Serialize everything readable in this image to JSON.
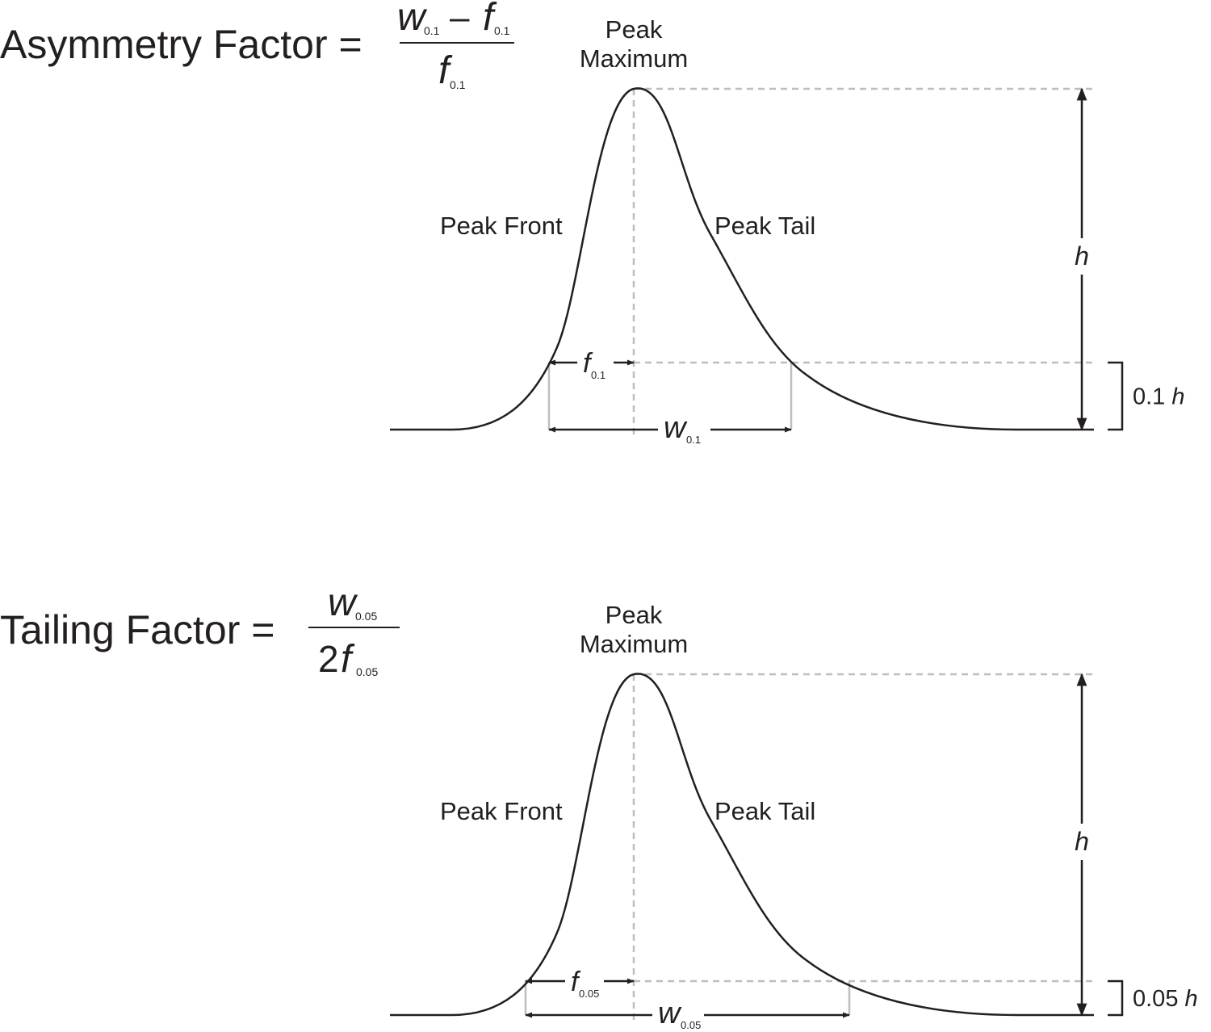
{
  "asymmetry": {
    "label": "Asymmetry Factor =",
    "numerator": {
      "w": "w",
      "w_sub": "0.1",
      "minus": "–",
      "f": "f",
      "f_sub": "0.1"
    },
    "denominator": {
      "f": "f",
      "f_sub": "0.1"
    },
    "peak_maximum": [
      "Peak",
      "Maximum"
    ],
    "peak_front": "Peak Front",
    "peak_tail": "Peak Tail",
    "height": "h",
    "front_width": {
      "symbol": "f",
      "sub": "0.1"
    },
    "width": {
      "symbol": "w",
      "sub": "0.1"
    },
    "fraction_height": {
      "value": "0.1",
      "symbol": "h"
    }
  },
  "tailing": {
    "label": "Tailing Factor =",
    "numerator": {
      "w": "w",
      "w_sub": "0.05"
    },
    "denominator": {
      "coefficient": "2",
      "f": "f",
      "f_sub": "0.05"
    },
    "peak_maximum": [
      "Peak",
      "Maximum"
    ],
    "peak_front": "Peak Front",
    "peak_tail": "Peak Tail",
    "height": "h",
    "front_width": {
      "symbol": "f",
      "sub": "0.05"
    },
    "width": {
      "symbol": "w",
      "sub": "0.05"
    },
    "fraction_height": {
      "value": "0.05",
      "symbol": "h"
    }
  }
}
